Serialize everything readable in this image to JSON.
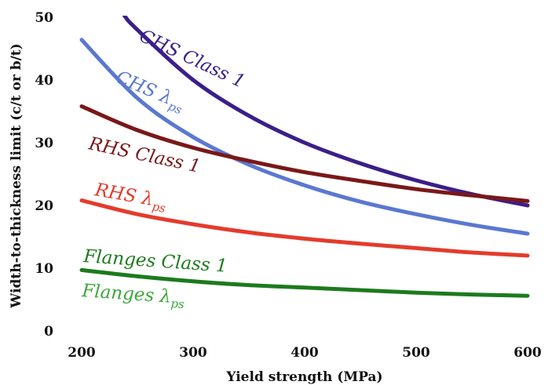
{
  "chart_data": {
    "type": "line",
    "xlabel": "Yield strength (MPa)",
    "ylabel": "Width-to-thickness limit (c/t or b/t)",
    "xlim": [
      200,
      600
    ],
    "ylim": [
      0,
      50
    ],
    "xticks": [
      "200",
      "300",
      "400",
      "500",
      "600"
    ],
    "yticks": [
      "0",
      "10",
      "20",
      "30",
      "40",
      "50"
    ],
    "grid": false,
    "legend": "inline labels",
    "series": [
      {
        "name": "CHS Class 1",
        "label_main": "CHS Class 1",
        "label_sub": "",
        "color": "#3b1f8a",
        "width": 5,
        "x": [
          200,
          235,
          250,
          300,
          350,
          400,
          450,
          500,
          550,
          600
        ],
        "y": [
          60,
          51.1,
          48,
          40,
          34.3,
          30,
          26.7,
          24,
          21.8,
          20
        ]
      },
      {
        "name": "CHS λps",
        "label_main": "CHS λ",
        "label_sub": "ps",
        "color": "#5b78d0",
        "width": 5,
        "x": [
          200,
          250,
          300,
          350,
          400,
          450,
          500,
          550,
          600
        ],
        "y": [
          46.4,
          37.1,
          30.9,
          26.5,
          23.2,
          20.6,
          18.6,
          16.9,
          15.5
        ]
      },
      {
        "name": "RHS Class 1",
        "label_main": "RHS Class 1",
        "label_sub": "",
        "color": "#7a1818",
        "width": 5,
        "x": [
          200,
          250,
          300,
          350,
          400,
          450,
          500,
          550,
          600
        ],
        "y": [
          35.8,
          32.0,
          29.2,
          27.1,
          25.3,
          23.9,
          22.6,
          21.6,
          20.7
        ]
      },
      {
        "name": "RHS λps",
        "label_main": "RHS λ",
        "label_sub": "ps",
        "color": "#e43b2c",
        "width": 5,
        "x": [
          200,
          250,
          300,
          350,
          400,
          450,
          500,
          550,
          600
        ],
        "y": [
          20.8,
          18.6,
          17.0,
          15.7,
          14.7,
          13.9,
          13.2,
          12.5,
          12.0
        ]
      },
      {
        "name": "Flanges Class 1",
        "label_main": "Flanges Class 1",
        "label_sub": "",
        "color": "#1d7a1d",
        "width": 5,
        "x": [
          200,
          250,
          300,
          350,
          400,
          450,
          500,
          550,
          600
        ],
        "y": [
          9.7,
          8.7,
          7.9,
          7.3,
          6.9,
          6.5,
          6.1,
          5.8,
          5.6
        ]
      },
      {
        "name": "Flanges λps",
        "label_main": "Flanges λ",
        "label_sub": "ps",
        "color": "#3aa83a",
        "width": 0,
        "x": [],
        "y": []
      }
    ]
  }
}
